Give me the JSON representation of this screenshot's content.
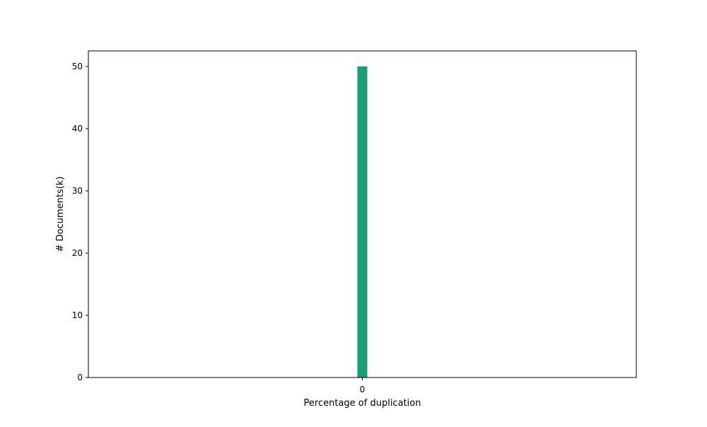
{
  "chart_data": {
    "type": "bar",
    "categories": [
      "0"
    ],
    "values": [
      50
    ],
    "title": "",
    "xlabel": "Percentage of duplication",
    "ylabel": "# Documents(k)",
    "ylim": [
      0,
      52.5
    ],
    "yticks": [
      0,
      10,
      20,
      30,
      40,
      50
    ],
    "xticks": [
      "0"
    ],
    "grid": false,
    "legend": "none",
    "bar_color": "#1b9e77"
  }
}
